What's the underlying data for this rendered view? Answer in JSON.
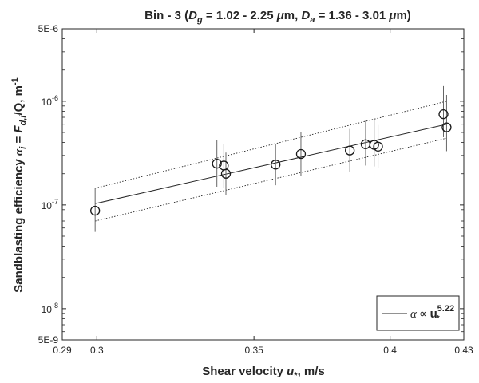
{
  "chart_data": {
    "type": "scatter",
    "title": "Bin - 3 (D_g = 1.02 - 2.25 μm, D_a = 1.36 - 3.01 μm)",
    "title_parts": {
      "prefix": "Bin - 3 (",
      "d1_symbol": "D",
      "d1_sub": "g",
      "d1_range": " = 1.02 - 2.25 ",
      "mu1": "μ",
      "unit1": "m, ",
      "d2_symbol": "D",
      "d2_sub": "a",
      "d2_range": " = 1.36 - 3.01 ",
      "mu2": "μ",
      "unit2": "m)"
    },
    "xlabel": "Shear velocity u*, m/s",
    "xlabel_parts": {
      "text": "Shear velocity ",
      "symbol": "u",
      "sub": "*",
      "tail": ", m/s"
    },
    "ylabel": "Sandblasting efficiency α_i = F_d,i/Q, m^-1",
    "ylabel_parts": {
      "text": "Sandblasting efficiency ",
      "alpha": "α",
      "alpha_sub": "i",
      "eq": " = ",
      "F": "F",
      "F_sub": "d,i",
      "rest": "/Q, m",
      "exp": "-1"
    },
    "x_scale": "log",
    "y_scale": "log",
    "xlim": [
      0.29,
      0.43
    ],
    "ylim": [
      5e-09,
      5e-06
    ],
    "x_ticks": [
      {
        "value": 0.29,
        "label": "0.29"
      },
      {
        "value": 0.3,
        "label": "0.3"
      },
      {
        "value": 0.35,
        "label": "0.35"
      },
      {
        "value": 0.4,
        "label": "0.4"
      },
      {
        "value": 0.43,
        "label": "0.43"
      }
    ],
    "y_ticks_plain": [
      {
        "value": 5e-09,
        "label": "5E-9"
      },
      {
        "value": 5e-06,
        "label": "5E-6"
      }
    ],
    "y_ticks_power": [
      {
        "value": 1e-08,
        "base": "10",
        "exp": "-8"
      },
      {
        "value": 1e-07,
        "base": "10",
        "exp": "-7"
      },
      {
        "value": 1e-06,
        "base": "10",
        "exp": "-6"
      }
    ],
    "points": [
      {
        "x": 0.2995,
        "y": 8.8e-08,
        "err_low": 5.5e-08,
        "err_high": 1.45e-07
      },
      {
        "x": 0.3375,
        "y": 2.5e-07,
        "err_low": 1.5e-07,
        "err_high": 4.2e-07
      },
      {
        "x": 0.3398,
        "y": 2.4e-07,
        "err_low": 1.45e-07,
        "err_high": 3.9e-07
      },
      {
        "x": 0.3405,
        "y": 2e-07,
        "err_low": 1.25e-07,
        "err_high": 3.2e-07
      },
      {
        "x": 0.3575,
        "y": 2.45e-07,
        "err_low": 1.55e-07,
        "err_high": 3.9e-07
      },
      {
        "x": 0.3665,
        "y": 3.1e-07,
        "err_low": 1.9e-07,
        "err_high": 5e-07
      },
      {
        "x": 0.3845,
        "y": 3.35e-07,
        "err_low": 2.1e-07,
        "err_high": 5.4e-07
      },
      {
        "x": 0.3905,
        "y": 3.85e-07,
        "err_low": 2.4e-07,
        "err_high": 6.5e-07
      },
      {
        "x": 0.3938,
        "y": 3.8e-07,
        "err_low": 2.35e-07,
        "err_high": 6.8e-07
      },
      {
        "x": 0.3953,
        "y": 3.65e-07,
        "err_low": 2.25e-07,
        "err_high": 5.9e-07
      },
      {
        "x": 0.4215,
        "y": 7.5e-07,
        "err_low": 4.5e-07,
        "err_high": 1.4e-06
      },
      {
        "x": 0.4228,
        "y": 5.6e-07,
        "err_low": 3.3e-07,
        "err_high": 1.15e-06
      }
    ],
    "fit": {
      "exponent": 5.22,
      "line": [
        [
          0.2995,
          1.03e-07
        ],
        [
          0.4228,
          6e-07
        ]
      ],
      "upper_bound": [
        [
          0.2995,
          1.45e-07
        ],
        [
          0.4228,
          1e-06
        ]
      ],
      "lower_bound": [
        [
          0.2995,
          7e-08
        ],
        [
          0.4228,
          4.4e-07
        ]
      ]
    },
    "legend": {
      "position": "bottom-right",
      "alpha": "α",
      "prop": "∝",
      "u": "u",
      "u_sub": "*",
      "exp": "5.22"
    },
    "grid": false,
    "colors": {
      "axes": "#262626",
      "data": "#1a1a1a",
      "background": "#ffffff"
    }
  }
}
